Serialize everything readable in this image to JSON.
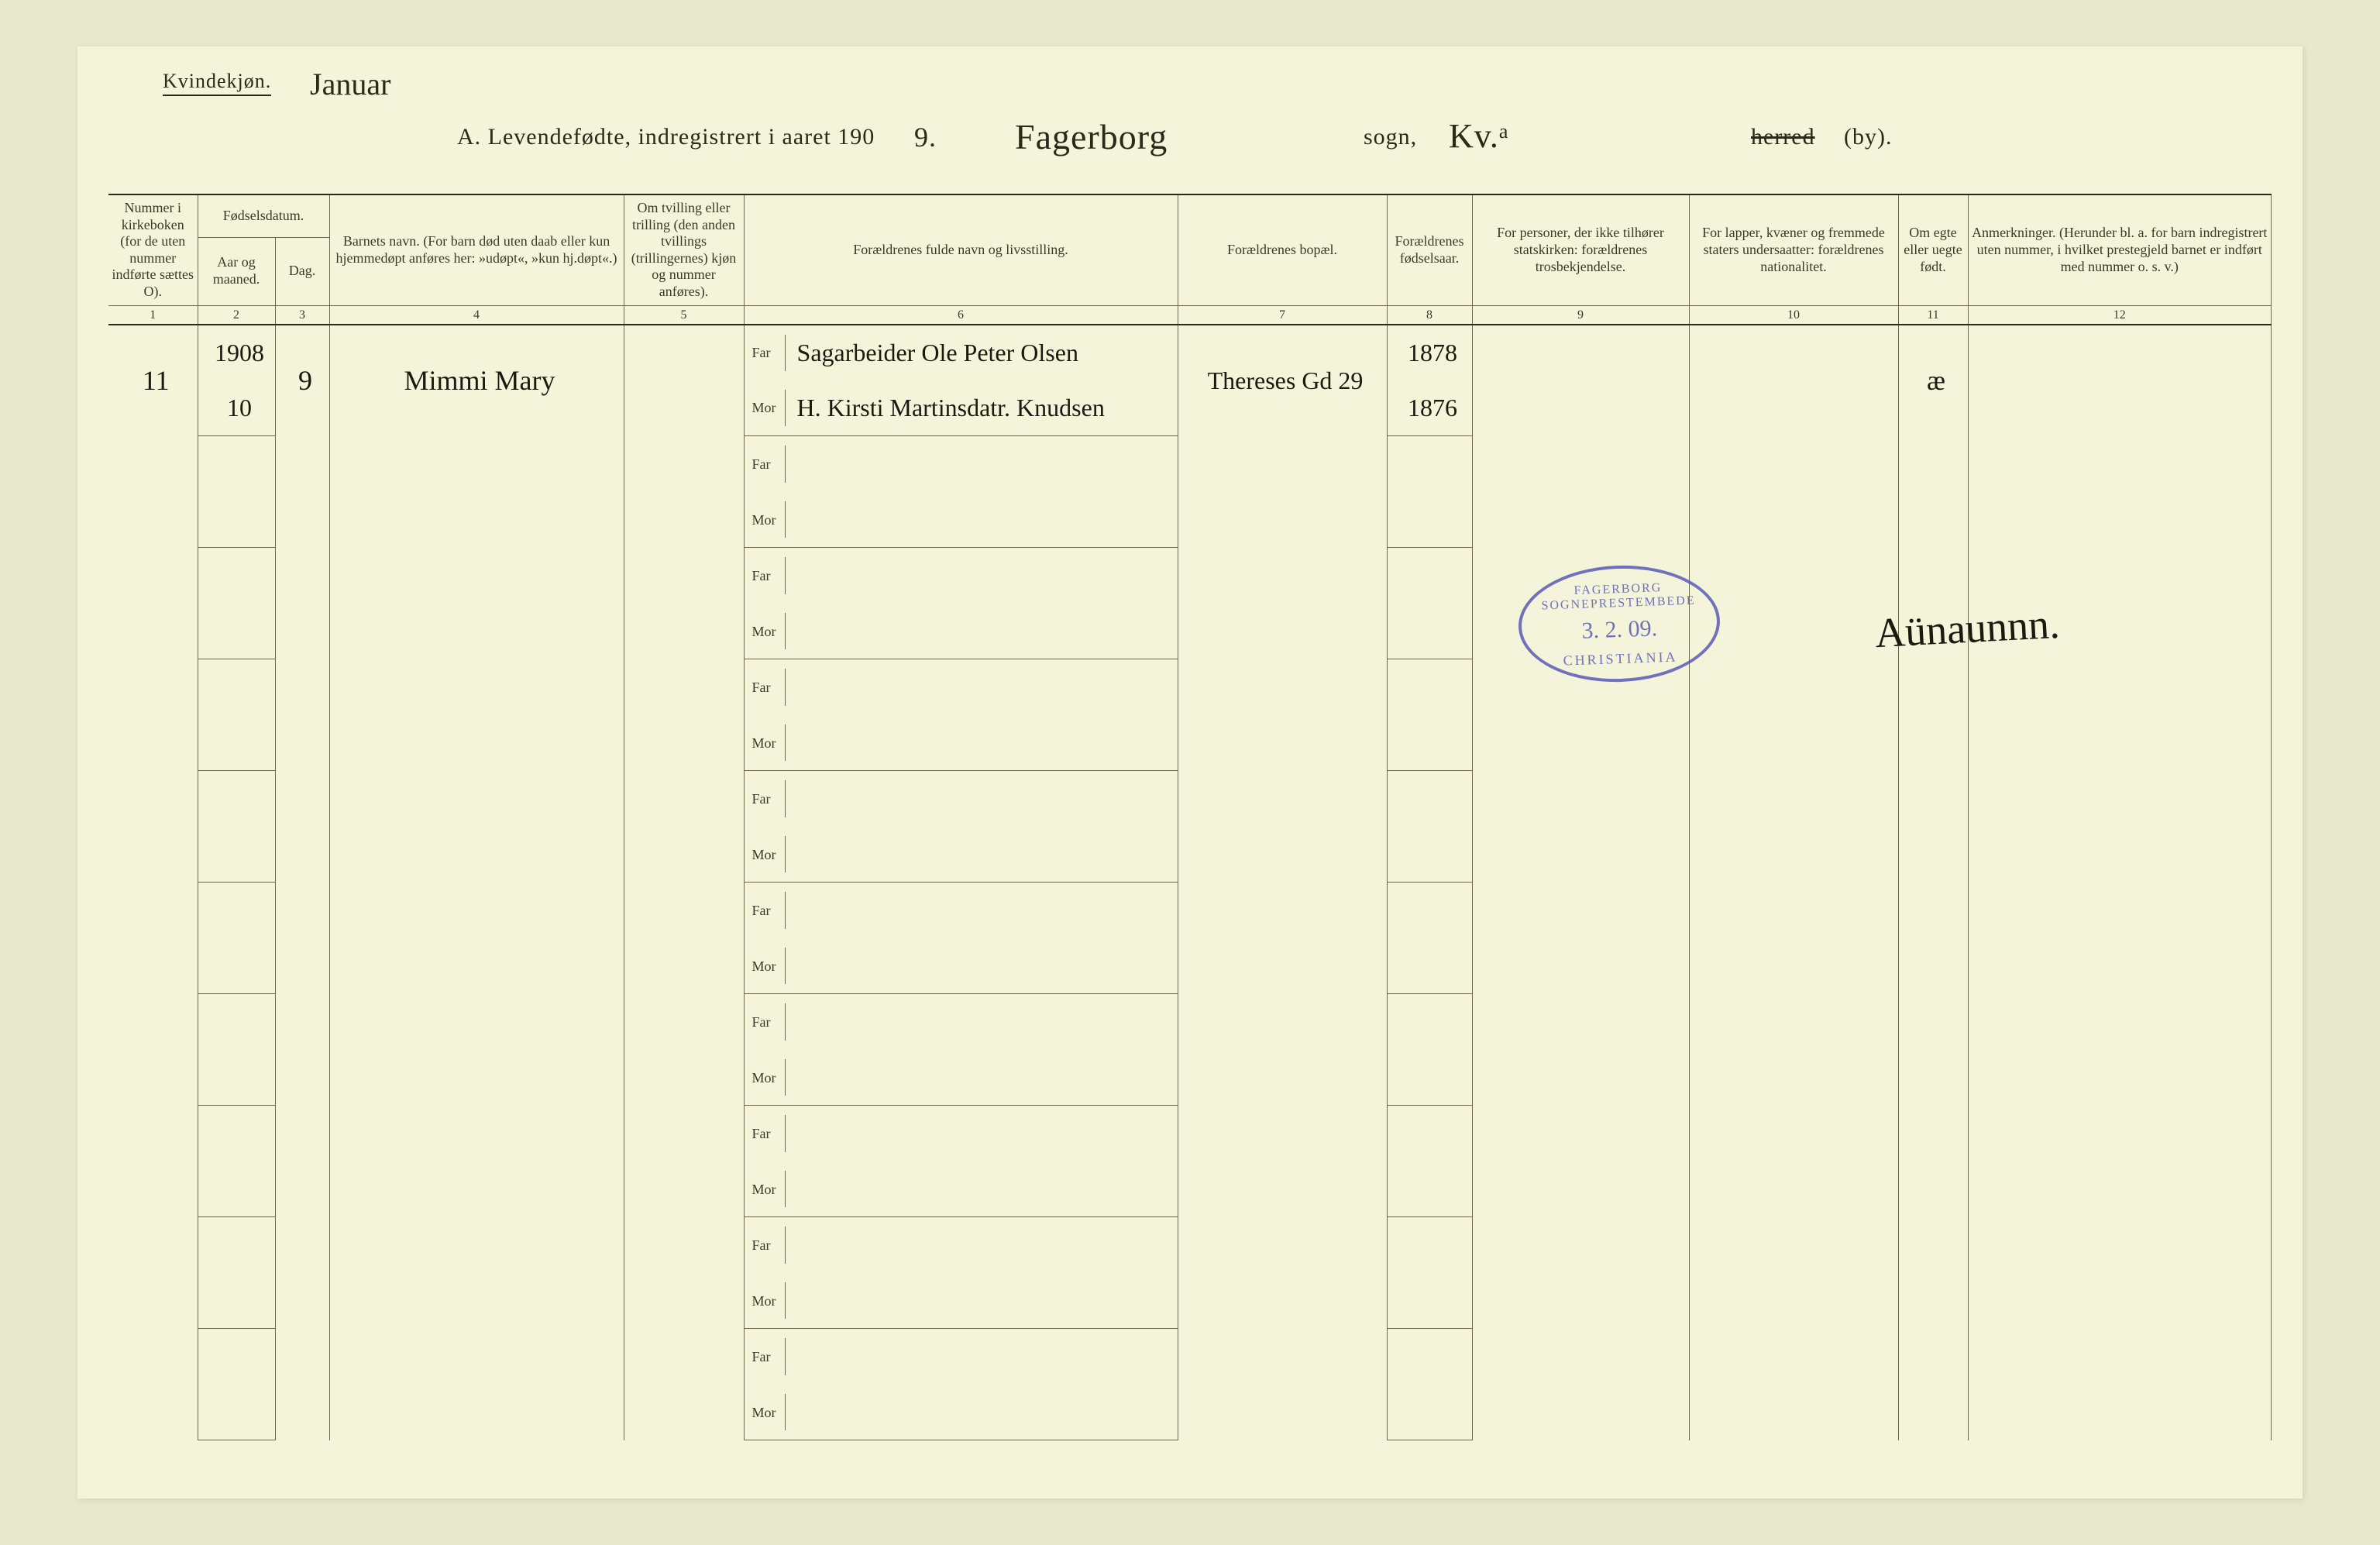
{
  "header": {
    "gender": "Kvindekjøn.",
    "month_hand": "Januar",
    "title": "A.  Levendefødte, indregistrert i aaret 190",
    "year_suffix_hand": "9.",
    "parish_hand": "Fagerborg",
    "sogn_label": "sogn,",
    "kv_hand": "Kv.ᵃ",
    "herred": "herred",
    "by": "(by)."
  },
  "columns": {
    "c1": "Nummer i kirke­boken (for de uten nummer indførte sættes O).",
    "c23_group": "Fødselsdatum.",
    "c2": "Aar og maaned.",
    "c3": "Dag.",
    "c4": "Barnets navn.\n(For barn død uten daab eller kun hjemmedøpt anføres her: »udøpt«, »kun hj.døpt«.)",
    "c5": "Om tvilling eller trilling (den anden tvillings (trillingernes) kjøn og nummer anføres).",
    "c6": "Forældrenes fulde navn og livsstilling.",
    "c7": "Forældrenes bopæl.",
    "c8": "For­ældrenes fødsels­aar.",
    "c9": "For personer, der ikke tilhører statskirken: forældrenes trosbekjendelse.",
    "c10": "For lapper, kvæner og fremmede staters undersaatter: forældrenes nationalitet.",
    "c11": "Om egte eller uegte født.",
    "c12": "Anmerkninger.\n(Herunder bl. a. for barn indregistrert uten nummer, i hvilket prestegjeld barnet er indført med nummer o. s. v.)",
    "nums": [
      "1",
      "2",
      "3",
      "4",
      "5",
      "6",
      "7",
      "8",
      "9",
      "10",
      "11",
      "12"
    ]
  },
  "parent_labels": {
    "far": "Far",
    "mor": "Mor"
  },
  "rows": [
    {
      "num": "11",
      "year_line": "1908",
      "month": "10",
      "day": "9",
      "child": "Mimmi Mary",
      "far": "Sagarbeider Ole Peter Olsen",
      "mor": "H. Kirsti Martinsdatr. Knudsen",
      "bopal": "Thereses Gd 29",
      "far_year": "1878",
      "mor_year": "1876",
      "egte": "æ"
    }
  ],
  "stamp": {
    "line1": "FAGERBORG SOGNEPRESTEMBEDE",
    "line2": "3. 2. 09.",
    "line3": "CHRISTIANIA"
  },
  "signature": "Aünaunnn.",
  "colors": {
    "paper": "#f4f4da",
    "ink": "#2a2a1a",
    "rule": "#6a6a4a",
    "stamp": "#5a5ab8"
  }
}
